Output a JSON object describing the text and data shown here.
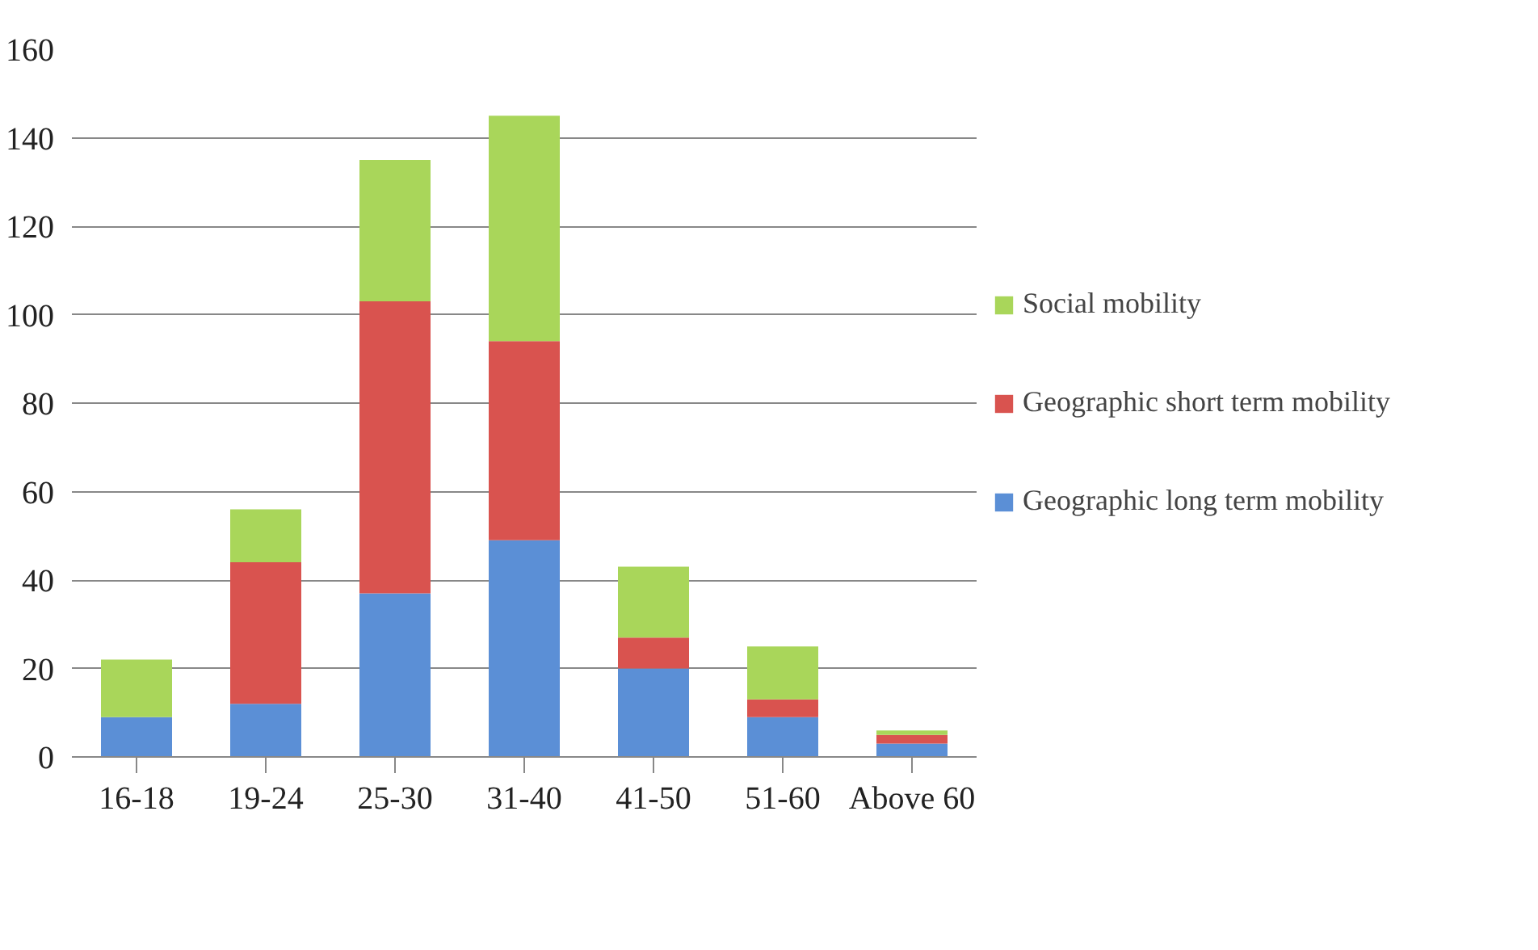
{
  "chart_data": {
    "type": "bar",
    "stacked": true,
    "categories": [
      "16-18",
      "19-24",
      "25-30",
      "31-40",
      "41-50",
      "51-60",
      "Above 60"
    ],
    "series": [
      {
        "name": "Geographic long term mobility",
        "color": "#5b8fd6",
        "values": [
          9,
          12,
          37,
          49,
          20,
          9,
          3
        ]
      },
      {
        "name": "Geographic short term mobility",
        "color": "#d9534f",
        "values": [
          0,
          32,
          66,
          45,
          7,
          4,
          2
        ]
      },
      {
        "name": "Social mobility",
        "color": "#a9d65a",
        "values": [
          13,
          12,
          32,
          51,
          16,
          12,
          1
        ]
      }
    ],
    "ylim": [
      0,
      160
    ],
    "yticks": [
      0,
      20,
      40,
      60,
      80,
      100,
      120,
      140,
      160
    ],
    "grid": "y",
    "legend": "right"
  }
}
